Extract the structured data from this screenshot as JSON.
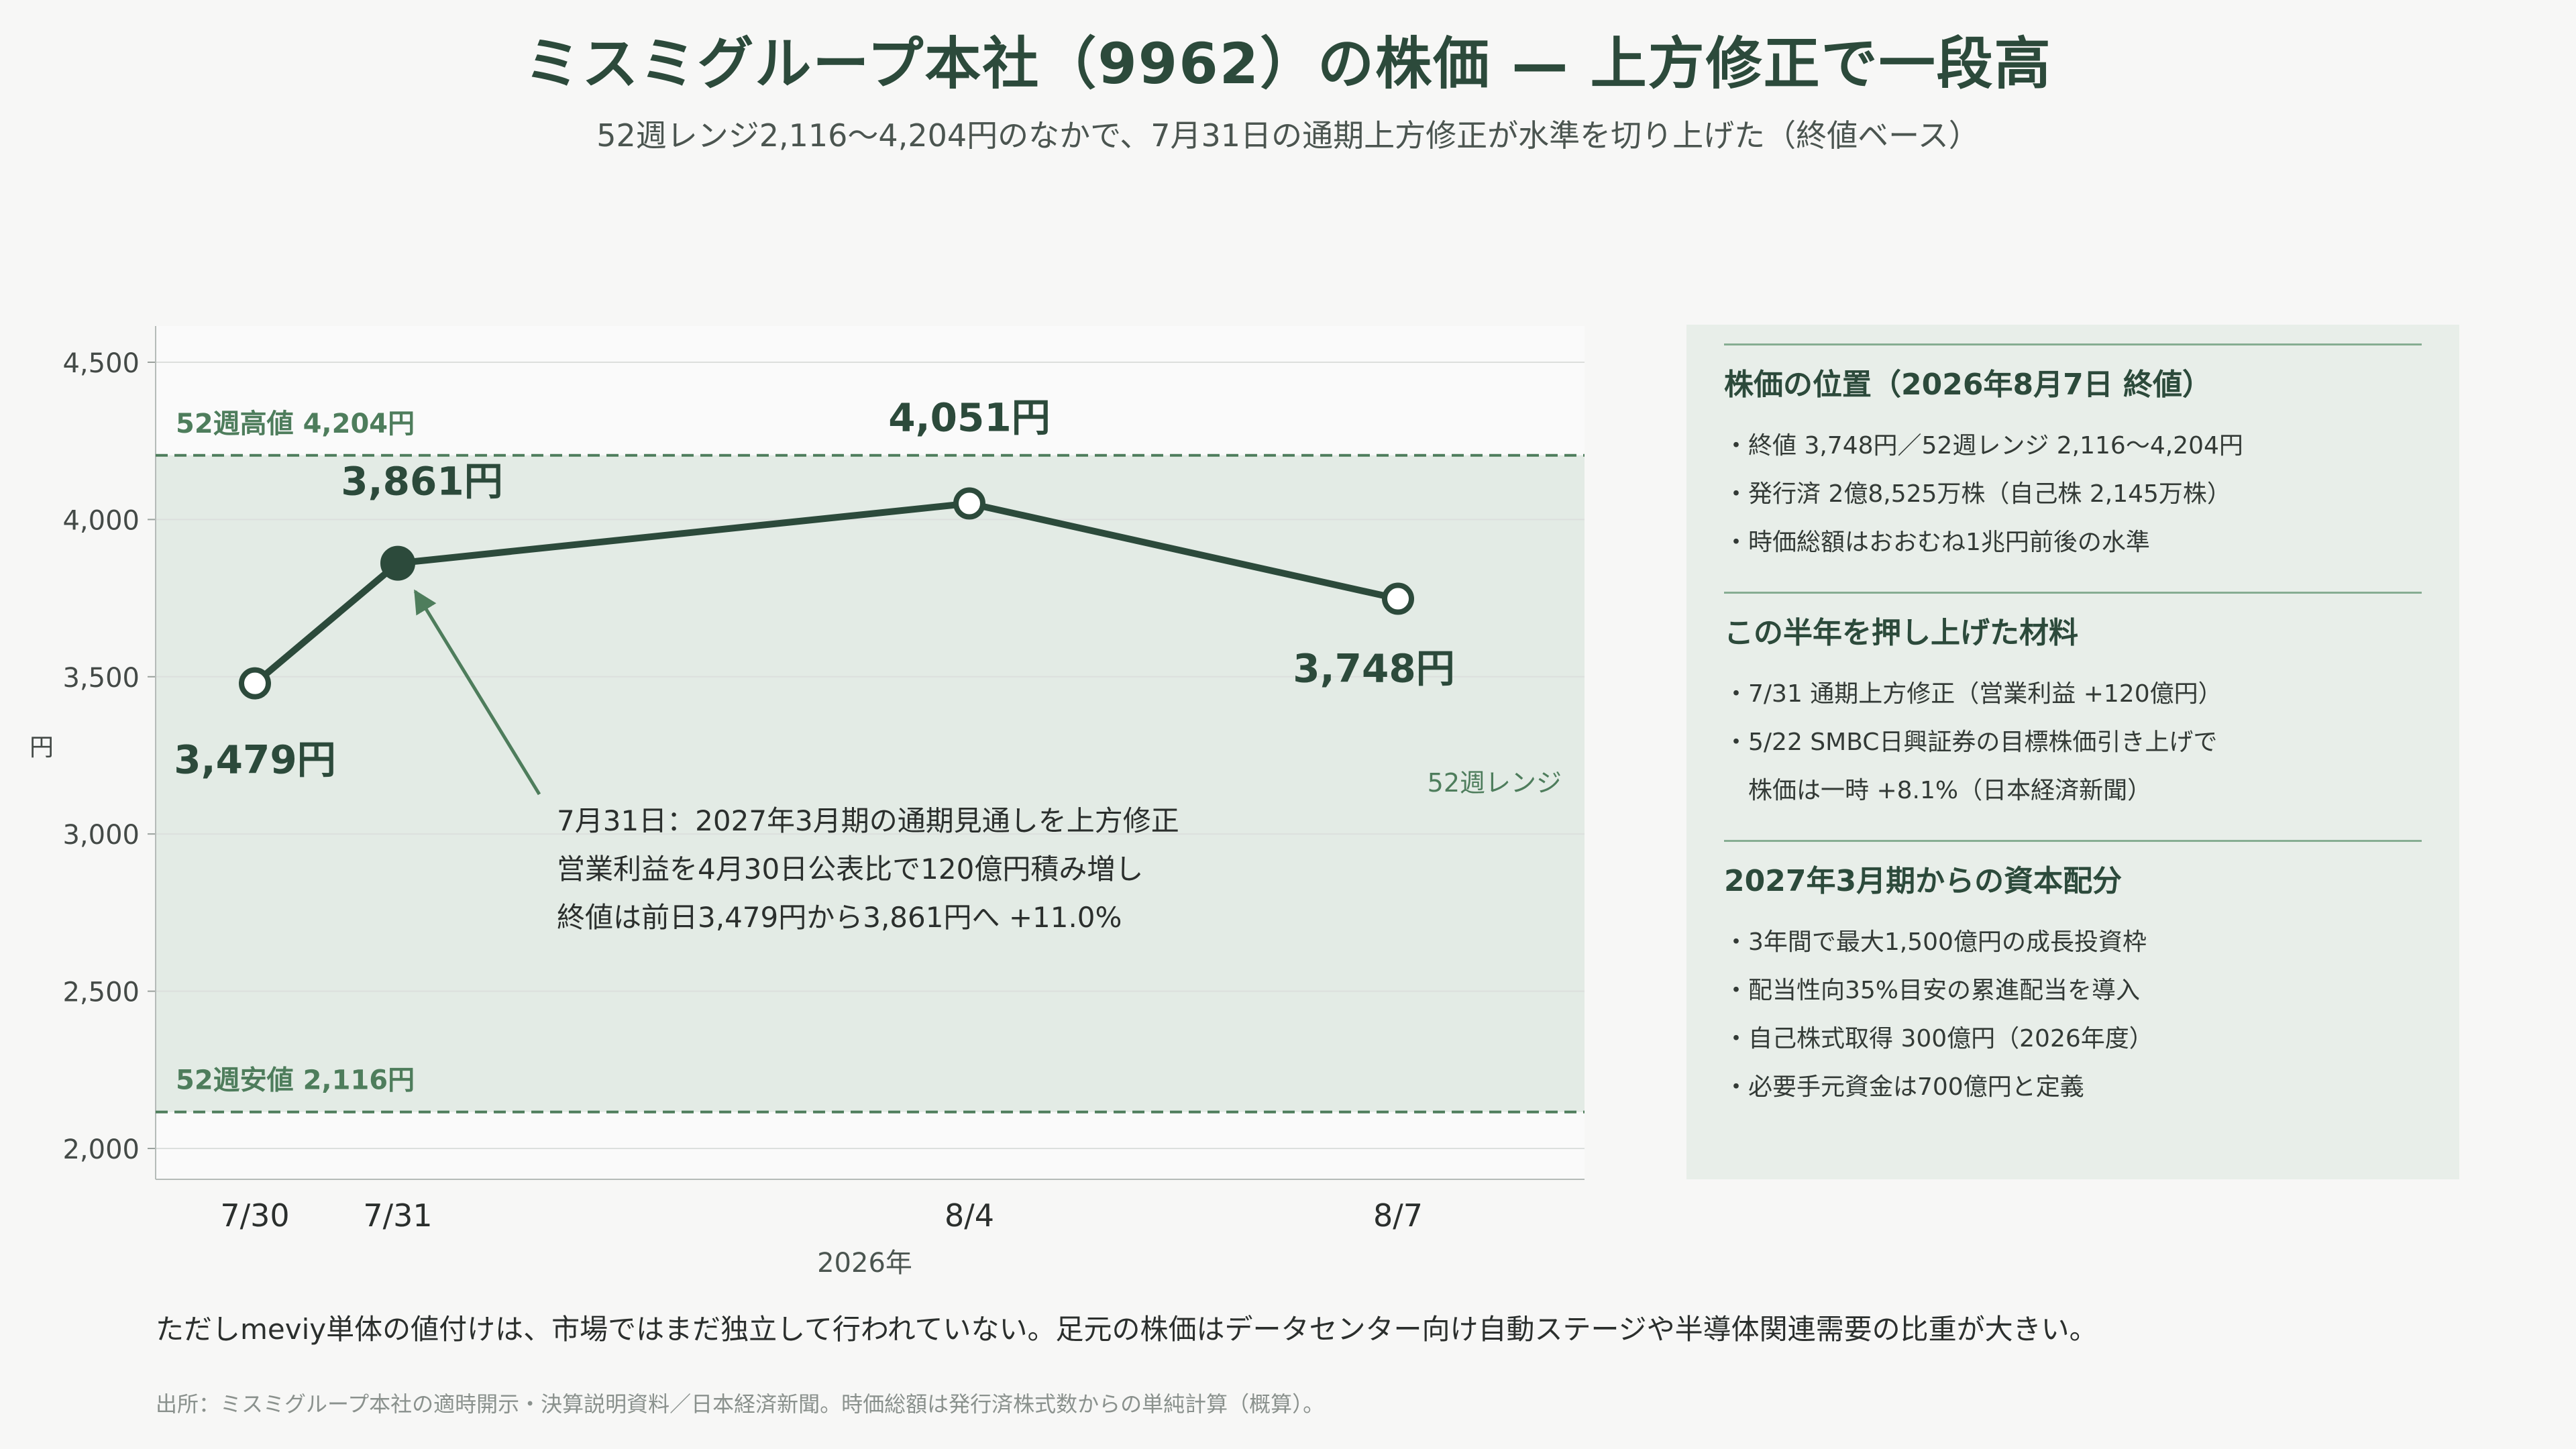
{
  "title": "ミスミグループ本社（9962）の株価 — 上方修正で一段高",
  "subtitle": "52週レンジ2,116〜4,204円のなかで、7月31日の通期上方修正が水準を切り上げた（終値ベース）",
  "colors": {
    "line": "#2c4a3b",
    "band": "#e3ebe5",
    "accent_green": "#4e7d5c",
    "panel_bg": "#e8eee9"
  },
  "chart_data": {
    "type": "line",
    "xlabel": "2026年",
    "ylabel": "円",
    "ylim": [
      2000,
      4500
    ],
    "yticks": [
      2000,
      2500,
      3000,
      3500,
      4000,
      4500
    ],
    "ytick_labels": [
      "2,000",
      "2,500",
      "3,000",
      "3,500",
      "4,000",
      "4,500"
    ],
    "categories": [
      "7/30",
      "7/31",
      "8/4",
      "8/7"
    ],
    "x_days": [
      30,
      31,
      35,
      38
    ],
    "values": [
      3479,
      3861,
      4051,
      3748
    ],
    "value_labels": [
      "3,479円",
      "3,861円",
      "4,051円",
      "3,748円"
    ],
    "highlight_index": 1,
    "range": {
      "high": 4204,
      "low": 2116,
      "high_label": "52週高値 4,204円",
      "low_label": "52週安値 2,116円",
      "band_label": "52週レンジ"
    },
    "annotation": [
      "7月31日：2027年3月期の通期見通しを上方修正",
      "営業利益を4月30日公表比で120億円積み増し",
      "終値は前日3,479円から3,861円へ +11.0%"
    ]
  },
  "panel": {
    "sections": [
      {
        "title": "株価の位置（2026年8月7日 終値）",
        "items": [
          "・終値 3,748円／52週レンジ 2,116〜4,204円",
          "・発行済 2億8,525万株（自己株 2,145万株）",
          "・時価総額はおおむね1兆円前後の水準"
        ]
      },
      {
        "title": "この半年を押し上げた材料",
        "items": [
          "・7/31 通期上方修正（営業利益 +120億円）",
          "・5/22 SMBC日興証券の目標株価引き上げで",
          "株価は一時 +8.1%（日本経済新聞）"
        ]
      },
      {
        "title": "2027年3月期からの資本配分",
        "items": [
          "・3年間で最大1,500億円の成長投資枠",
          "・配当性向35%目安の累進配当を導入",
          "・自己株式取得 300億円（2026年度）",
          "・必要手元資金は700億円と定義"
        ]
      }
    ]
  },
  "note": "ただしmeviy単体の値付けは、市場ではまだ独立して行われていない。足元の株価はデータセンター向け自動ステージや半導体関連需要の比重が大きい。",
  "source": "出所：ミスミグループ本社の適時開示・決算説明資料／日本経済新聞。時価総額は発行済株式数からの単純計算（概算）。"
}
